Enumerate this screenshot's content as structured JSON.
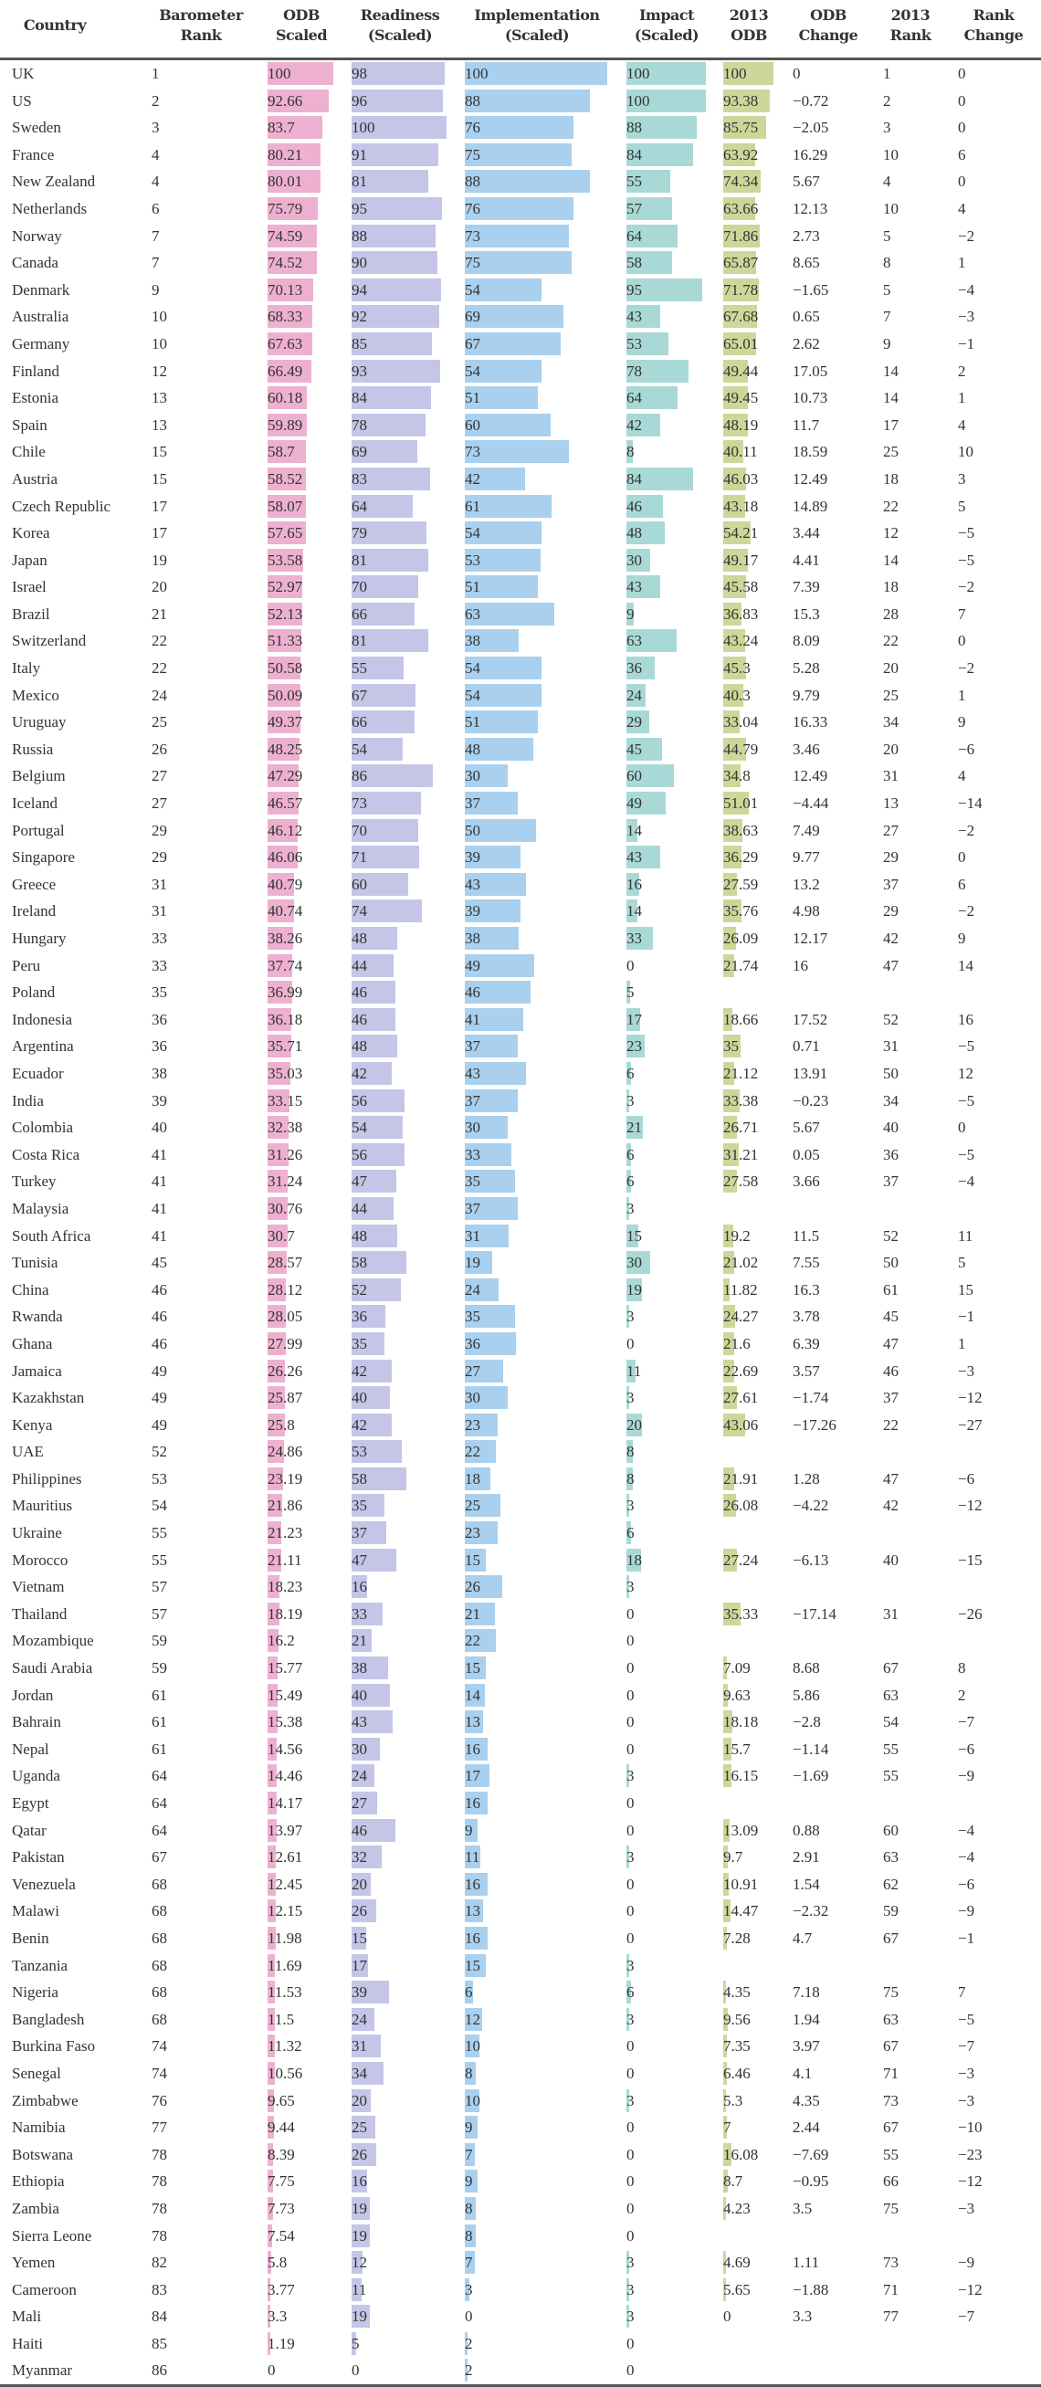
{
  "table": {
    "headers": [
      "Country",
      "Barometer\nRank",
      "ODB\nScaled",
      "Readiness\n(Scaled)",
      "Implementation\n(Scaled)",
      "Impact\n(Scaled)",
      "2013\nODB",
      "ODB\nChange",
      "2013\nRank",
      "Rank\nChange"
    ],
    "bar_colors": {
      "odb": "#eeb0d0",
      "readiness": "#c5c5e8",
      "implementation": "#a9d0ee",
      "impact": "#a9d9d6",
      "odb_2013": "#ccd799"
    },
    "rows": [
      [
        "UK",
        "1",
        "100",
        "98",
        "100",
        "100",
        "100",
        "0",
        "1",
        "0"
      ],
      [
        "US",
        "2",
        "92.66",
        "96",
        "88",
        "100",
        "93.38",
        "−0.72",
        "2",
        "0"
      ],
      [
        "Sweden",
        "3",
        "83.7",
        "100",
        "76",
        "88",
        "85.75",
        "−2.05",
        "3",
        "0"
      ],
      [
        "France",
        "4",
        "80.21",
        "91",
        "75",
        "84",
        "63.92",
        "16.29",
        "10",
        "6"
      ],
      [
        "New Zealand",
        "4",
        "80.01",
        "81",
        "88",
        "55",
        "74.34",
        "5.67",
        "4",
        "0"
      ],
      [
        "Netherlands",
        "6",
        "75.79",
        "95",
        "76",
        "57",
        "63.66",
        "12.13",
        "10",
        "4"
      ],
      [
        "Norway",
        "7",
        "74.59",
        "88",
        "73",
        "64",
        "71.86",
        "2.73",
        "5",
        "−2"
      ],
      [
        "Canada",
        "7",
        "74.52",
        "90",
        "75",
        "58",
        "65.87",
        "8.65",
        "8",
        "1"
      ],
      [
        "Denmark",
        "9",
        "70.13",
        "94",
        "54",
        "95",
        "71.78",
        "−1.65",
        "5",
        "−4"
      ],
      [
        "Australia",
        "10",
        "68.33",
        "92",
        "69",
        "43",
        "67.68",
        "0.65",
        "7",
        "−3"
      ],
      [
        "Germany",
        "10",
        "67.63",
        "85",
        "67",
        "53",
        "65.01",
        "2.62",
        "9",
        "−1"
      ],
      [
        "Finland",
        "12",
        "66.49",
        "93",
        "54",
        "78",
        "49.44",
        "17.05",
        "14",
        "2"
      ],
      [
        "Estonia",
        "13",
        "60.18",
        "84",
        "51",
        "64",
        "49.45",
        "10.73",
        "14",
        "1"
      ],
      [
        "Spain",
        "13",
        "59.89",
        "78",
        "60",
        "42",
        "48.19",
        "11.7",
        "17",
        "4"
      ],
      [
        "Chile",
        "15",
        "58.7",
        "69",
        "73",
        "8",
        "40.11",
        "18.59",
        "25",
        "10"
      ],
      [
        "Austria",
        "15",
        "58.52",
        "83",
        "42",
        "84",
        "46.03",
        "12.49",
        "18",
        "3"
      ],
      [
        "Czech Republic",
        "17",
        "58.07",
        "64",
        "61",
        "46",
        "43.18",
        "14.89",
        "22",
        "5"
      ],
      [
        "Korea",
        "17",
        "57.65",
        "79",
        "54",
        "48",
        "54.21",
        "3.44",
        "12",
        "−5"
      ],
      [
        "Japan",
        "19",
        "53.58",
        "81",
        "53",
        "30",
        "49.17",
        "4.41",
        "14",
        "−5"
      ],
      [
        "Israel",
        "20",
        "52.97",
        "70",
        "51",
        "43",
        "45.58",
        "7.39",
        "18",
        "−2"
      ],
      [
        "Brazil",
        "21",
        "52.13",
        "66",
        "63",
        "9",
        "36.83",
        "15.3",
        "28",
        "7"
      ],
      [
        "Switzerland",
        "22",
        "51.33",
        "81",
        "38",
        "63",
        "43.24",
        "8.09",
        "22",
        "0"
      ],
      [
        "Italy",
        "22",
        "50.58",
        "55",
        "54",
        "36",
        "45.3",
        "5.28",
        "20",
        "−2"
      ],
      [
        "Mexico",
        "24",
        "50.09",
        "67",
        "54",
        "24",
        "40.3",
        "9.79",
        "25",
        "1"
      ],
      [
        "Uruguay",
        "25",
        "49.37",
        "66",
        "51",
        "29",
        "33.04",
        "16.33",
        "34",
        "9"
      ],
      [
        "Russia",
        "26",
        "48.25",
        "54",
        "48",
        "45",
        "44.79",
        "3.46",
        "20",
        "−6"
      ],
      [
        "Belgium",
        "27",
        "47.29",
        "86",
        "30",
        "60",
        "34.8",
        "12.49",
        "31",
        "4"
      ],
      [
        "Iceland",
        "27",
        "46.57",
        "73",
        "37",
        "49",
        "51.01",
        "−4.44",
        "13",
        "−14"
      ],
      [
        "Portugal",
        "29",
        "46.12",
        "70",
        "50",
        "14",
        "38.63",
        "7.49",
        "27",
        "−2"
      ],
      [
        "Singapore",
        "29",
        "46.06",
        "71",
        "39",
        "43",
        "36.29",
        "9.77",
        "29",
        "0"
      ],
      [
        "Greece",
        "31",
        "40.79",
        "60",
        "43",
        "16",
        "27.59",
        "13.2",
        "37",
        "6"
      ],
      [
        "Ireland",
        "31",
        "40.74",
        "74",
        "39",
        "14",
        "35.76",
        "4.98",
        "29",
        "−2"
      ],
      [
        "Hungary",
        "33",
        "38.26",
        "48",
        "38",
        "33",
        "26.09",
        "12.17",
        "42",
        "9"
      ],
      [
        "Peru",
        "33",
        "37.74",
        "44",
        "49",
        "0",
        "21.74",
        "16",
        "47",
        "14"
      ],
      [
        "Poland",
        "35",
        "36.99",
        "46",
        "46",
        "5",
        "",
        "",
        "",
        ""
      ],
      [
        "Indonesia",
        "36",
        "36.18",
        "46",
        "41",
        "17",
        "18.66",
        "17.52",
        "52",
        "16"
      ],
      [
        "Argentina",
        "36",
        "35.71",
        "48",
        "37",
        "23",
        "35",
        "0.71",
        "31",
        "−5"
      ],
      [
        "Ecuador",
        "38",
        "35.03",
        "42",
        "43",
        "6",
        "21.12",
        "13.91",
        "50",
        "12"
      ],
      [
        "India",
        "39",
        "33.15",
        "56",
        "37",
        "3",
        "33.38",
        "−0.23",
        "34",
        "−5"
      ],
      [
        "Colombia",
        "40",
        "32.38",
        "54",
        "30",
        "21",
        "26.71",
        "5.67",
        "40",
        "0"
      ],
      [
        "Costa Rica",
        "41",
        "31.26",
        "56",
        "33",
        "6",
        "31.21",
        "0.05",
        "36",
        "−5"
      ],
      [
        "Turkey",
        "41",
        "31.24",
        "47",
        "35",
        "6",
        "27.58",
        "3.66",
        "37",
        "−4"
      ],
      [
        "Malaysia",
        "41",
        "30.76",
        "44",
        "37",
        "3",
        "",
        "",
        "",
        ""
      ],
      [
        "South Africa",
        "41",
        "30.7",
        "48",
        "31",
        "15",
        "19.2",
        "11.5",
        "52",
        "11"
      ],
      [
        "Tunisia",
        "45",
        "28.57",
        "58",
        "19",
        "30",
        "21.02",
        "7.55",
        "50",
        "5"
      ],
      [
        "China",
        "46",
        "28.12",
        "52",
        "24",
        "19",
        "11.82",
        "16.3",
        "61",
        "15"
      ],
      [
        "Rwanda",
        "46",
        "28.05",
        "36",
        "35",
        "3",
        "24.27",
        "3.78",
        "45",
        "−1"
      ],
      [
        "Ghana",
        "46",
        "27.99",
        "35",
        "36",
        "0",
        "21.6",
        "6.39",
        "47",
        "1"
      ],
      [
        "Jamaica",
        "49",
        "26.26",
        "42",
        "27",
        "11",
        "22.69",
        "3.57",
        "46",
        "−3"
      ],
      [
        "Kazakhstan",
        "49",
        "25.87",
        "40",
        "30",
        "3",
        "27.61",
        "−1.74",
        "37",
        "−12"
      ],
      [
        "Kenya",
        "49",
        "25.8",
        "42",
        "23",
        "20",
        "43.06",
        "−17.26",
        "22",
        "−27"
      ],
      [
        "UAE",
        "52",
        "24.86",
        "53",
        "22",
        "8",
        "",
        "",
        "",
        ""
      ],
      [
        "Philippines",
        "53",
        "23.19",
        "58",
        "18",
        "8",
        "21.91",
        "1.28",
        "47",
        "−6"
      ],
      [
        "Mauritius",
        "54",
        "21.86",
        "35",
        "25",
        "3",
        "26.08",
        "−4.22",
        "42",
        "−12"
      ],
      [
        "Ukraine",
        "55",
        "21.23",
        "37",
        "23",
        "6",
        "",
        "",
        "",
        ""
      ],
      [
        "Morocco",
        "55",
        "21.11",
        "47",
        "15",
        "18",
        "27.24",
        "−6.13",
        "40",
        "−15"
      ],
      [
        "Vietnam",
        "57",
        "18.23",
        "16",
        "26",
        "3",
        "",
        "",
        "",
        ""
      ],
      [
        "Thailand",
        "57",
        "18.19",
        "33",
        "21",
        "0",
        "35.33",
        "−17.14",
        "31",
        "−26"
      ],
      [
        "Mozambique",
        "59",
        "16.2",
        "21",
        "22",
        "0",
        "",
        "",
        "",
        ""
      ],
      [
        "Saudi Arabia",
        "59",
        "15.77",
        "38",
        "15",
        "0",
        "7.09",
        "8.68",
        "67",
        "8"
      ],
      [
        "Jordan",
        "61",
        "15.49",
        "40",
        "14",
        "0",
        "9.63",
        "5.86",
        "63",
        "2"
      ],
      [
        "Bahrain",
        "61",
        "15.38",
        "43",
        "13",
        "0",
        "18.18",
        "−2.8",
        "54",
        "−7"
      ],
      [
        "Nepal",
        "61",
        "14.56",
        "30",
        "16",
        "0",
        "15.7",
        "−1.14",
        "55",
        "−6"
      ],
      [
        "Uganda",
        "64",
        "14.46",
        "24",
        "17",
        "3",
        "16.15",
        "−1.69",
        "55",
        "−9"
      ],
      [
        "Egypt",
        "64",
        "14.17",
        "27",
        "16",
        "0",
        "",
        "",
        "",
        ""
      ],
      [
        "Qatar",
        "64",
        "13.97",
        "46",
        "9",
        "0",
        "13.09",
        "0.88",
        "60",
        "−4"
      ],
      [
        "Pakistan",
        "67",
        "12.61",
        "32",
        "11",
        "3",
        "9.7",
        "2.91",
        "63",
        "−4"
      ],
      [
        "Venezuela",
        "68",
        "12.45",
        "20",
        "16",
        "0",
        "10.91",
        "1.54",
        "62",
        "−6"
      ],
      [
        "Malawi",
        "68",
        "12.15",
        "26",
        "13",
        "0",
        "14.47",
        "−2.32",
        "59",
        "−9"
      ],
      [
        "Benin",
        "68",
        "11.98",
        "15",
        "16",
        "0",
        "7.28",
        "4.7",
        "67",
        "−1"
      ],
      [
        "Tanzania",
        "68",
        "11.69",
        "17",
        "15",
        "3",
        "",
        "",
        "",
        ""
      ],
      [
        "Nigeria",
        "68",
        "11.53",
        "39",
        "6",
        "6",
        "4.35",
        "7.18",
        "75",
        "7"
      ],
      [
        "Bangladesh",
        "68",
        "11.5",
        "24",
        "12",
        "3",
        "9.56",
        "1.94",
        "63",
        "−5"
      ],
      [
        "Burkina Faso",
        "74",
        "11.32",
        "31",
        "10",
        "0",
        "7.35",
        "3.97",
        "67",
        "−7"
      ],
      [
        "Senegal",
        "74",
        "10.56",
        "34",
        "8",
        "0",
        "6.46",
        "4.1",
        "71",
        "−3"
      ],
      [
        "Zimbabwe",
        "76",
        "9.65",
        "20",
        "10",
        "3",
        "5.3",
        "4.35",
        "73",
        "−3"
      ],
      [
        "Namibia",
        "77",
        "9.44",
        "25",
        "9",
        "0",
        "7",
        "2.44",
        "67",
        "−10"
      ],
      [
        "Botswana",
        "78",
        "8.39",
        "26",
        "7",
        "0",
        "16.08",
        "−7.69",
        "55",
        "−23"
      ],
      [
        "Ethiopia",
        "78",
        "7.75",
        "16",
        "9",
        "0",
        "8.7",
        "−0.95",
        "66",
        "−12"
      ],
      [
        "Zambia",
        "78",
        "7.73",
        "19",
        "8",
        "0",
        "4.23",
        "3.5",
        "75",
        "−3"
      ],
      [
        "Sierra Leone",
        "78",
        "7.54",
        "19",
        "8",
        "0",
        "",
        "",
        "",
        ""
      ],
      [
        "Yemen",
        "82",
        "5.8",
        "12",
        "7",
        "3",
        "4.69",
        "1.11",
        "73",
        "−9"
      ],
      [
        "Cameroon",
        "83",
        "3.77",
        "11",
        "3",
        "3",
        "5.65",
        "−1.88",
        "71",
        "−12"
      ],
      [
        "Mali",
        "84",
        "3.3",
        "19",
        "0",
        "3",
        "0",
        "3.3",
        "77",
        "−7"
      ],
      [
        "Haiti",
        "85",
        "1.19",
        "5",
        "2",
        "0",
        "",
        "",
        "",
        ""
      ],
      [
        "Myanmar",
        "86",
        "0",
        "0",
        "2",
        "0",
        "",
        "",
        "",
        ""
      ]
    ]
  }
}
